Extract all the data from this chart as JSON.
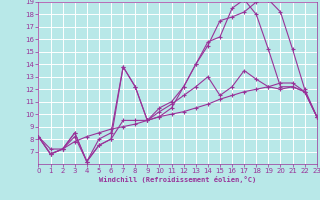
{
  "xlabel": "Windchill (Refroidissement éolien,°C)",
  "bg_color": "#b8e8e8",
  "grid_color": "#ffffff",
  "line_color": "#993399",
  "xmin": 0,
  "xmax": 23,
  "ymin": 6,
  "ymax": 19,
  "lines": [
    [
      0,
      8.2,
      1,
      6.8,
      2,
      7.2,
      3,
      8.5,
      4,
      6.2,
      5,
      7.5,
      6,
      8.0,
      7,
      9.5,
      8,
      9.5,
      9,
      9.5,
      10,
      10.5,
      11,
      11.0,
      12,
      12.2,
      13,
      14.0,
      14,
      15.5,
      15,
      17.5,
      16,
      17.8,
      17,
      18.2,
      18,
      19.0,
      19,
      19.2,
      20,
      18.2,
      21,
      15.2,
      22,
      12.0,
      23,
      9.8
    ],
    [
      0,
      8.2,
      1,
      6.8,
      2,
      7.2,
      3,
      8.5,
      4,
      6.2,
      5,
      8.0,
      6,
      8.5,
      7,
      13.8,
      8,
      12.2,
      9,
      9.5,
      10,
      9.8,
      11,
      10.5,
      12,
      12.2,
      13,
      14.0,
      14,
      15.8,
      15,
      16.2,
      16,
      18.5,
      17,
      19.2,
      18,
      18.0,
      19,
      15.2,
      20,
      12.2,
      21,
      12.2,
      22,
      11.8,
      23,
      9.8
    ],
    [
      0,
      8.2,
      1,
      6.8,
      2,
      7.2,
      3,
      8.2,
      4,
      6.2,
      5,
      7.5,
      6,
      8.0,
      7,
      13.8,
      8,
      12.2,
      9,
      9.5,
      10,
      10.2,
      11,
      10.8,
      12,
      11.5,
      13,
      12.2,
      14,
      13.0,
      15,
      11.5,
      16,
      12.2,
      17,
      13.5,
      18,
      12.8,
      19,
      12.2,
      20,
      12.0,
      21,
      12.2,
      22,
      11.8,
      23,
      9.8
    ],
    [
      0,
      8.2,
      1,
      7.2,
      2,
      7.2,
      3,
      7.8,
      4,
      8.2,
      5,
      8.5,
      6,
      8.8,
      7,
      9.0,
      8,
      9.2,
      9,
      9.5,
      10,
      9.8,
      11,
      10.0,
      12,
      10.2,
      13,
      10.5,
      14,
      10.8,
      15,
      11.2,
      16,
      11.5,
      17,
      11.8,
      18,
      12.0,
      19,
      12.2,
      20,
      12.5,
      21,
      12.5,
      22,
      11.8,
      23,
      9.8
    ]
  ]
}
